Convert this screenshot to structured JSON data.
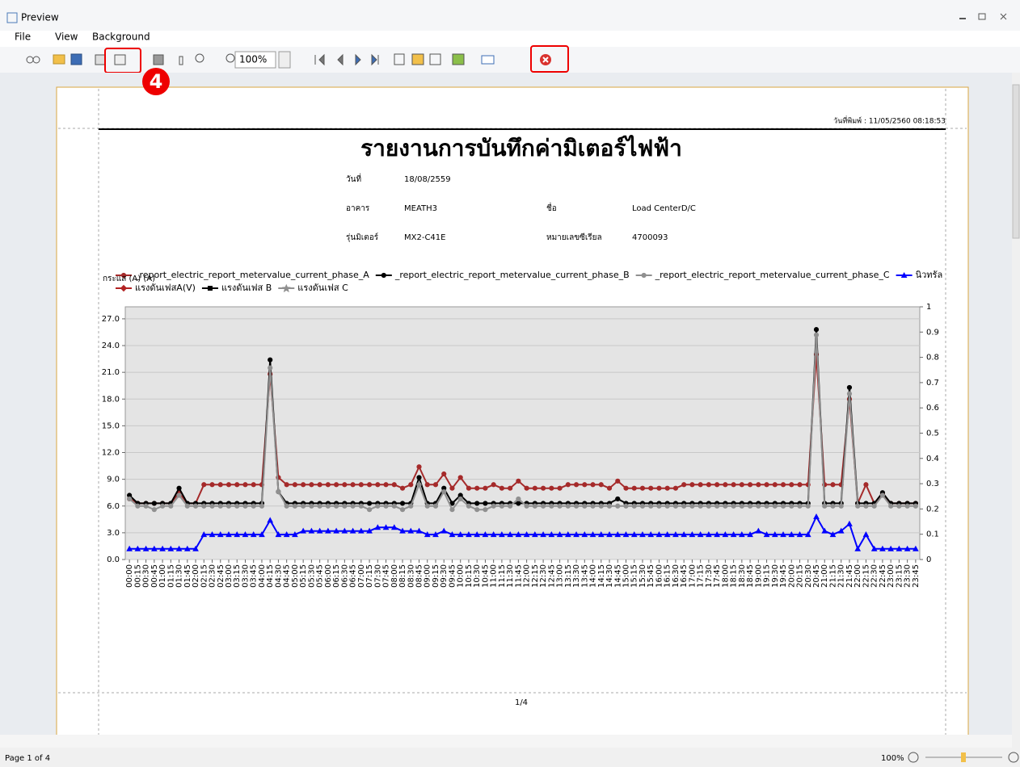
{
  "window": {
    "title": "Preview"
  },
  "menu": [
    "File",
    "View",
    "Background"
  ],
  "toolbar": {
    "zoom": "100%"
  },
  "annotation": {
    "step": "4"
  },
  "page": {
    "print_date": "วันที่พิมพ์ : 11/05/2560 08:18:53",
    "title": "รายงานการบันทึกค่ามิเตอร์ไฟฟ้า",
    "fields": [
      {
        "label": "วันที่",
        "value": "18/08/2559"
      },
      {
        "label": "อาคาร",
        "value": "MEATH3"
      },
      {
        "label": "ชื่อ",
        "value": "Load CenterD/C"
      },
      {
        "label": "รุ่นมิเตอร์",
        "value": "MX2-C41E"
      },
      {
        "label": "หมายเลขซีเรียล",
        "value": "4700093"
      }
    ],
    "page_number": "1/4"
  },
  "chart_data": {
    "type": "line",
    "y_label": "กระแส (A) (A)",
    "categories": [
      "00:00",
      "00:15",
      "00:30",
      "00:45",
      "01:00",
      "01:15",
      "01:30",
      "01:45",
      "02:00",
      "02:15",
      "02:30",
      "02:45",
      "03:00",
      "03:15",
      "03:30",
      "03:45",
      "04:00",
      "04:15",
      "04:30",
      "04:45",
      "05:00",
      "05:15",
      "05:30",
      "05:45",
      "06:00",
      "06:15",
      "06:30",
      "06:45",
      "07:00",
      "07:15",
      "07:30",
      "07:45",
      "08:00",
      "08:15",
      "08:30",
      "08:45",
      "09:00",
      "09:15",
      "09:30",
      "09:45",
      "10:00",
      "10:15",
      "10:30",
      "10:45",
      "11:00",
      "11:15",
      "11:30",
      "11:45",
      "12:00",
      "12:15",
      "12:30",
      "12:45",
      "13:00",
      "13:15",
      "13:30",
      "13:45",
      "14:00",
      "14:15",
      "14:30",
      "14:45",
      "15:00",
      "15:15",
      "15:30",
      "15:45",
      "16:00",
      "16:15",
      "16:30",
      "16:45",
      "17:00",
      "17:15",
      "17:30",
      "17:45",
      "18:00",
      "18:15",
      "18:30",
      "18:45",
      "19:00",
      "19:15",
      "19:30",
      "19:45",
      "20:00",
      "20:15",
      "20:30",
      "20:45",
      "21:00",
      "21:15",
      "21:30",
      "21:45",
      "22:00",
      "22:15",
      "22:30",
      "22:45",
      "23:00",
      "23:15",
      "23:30",
      "23:45"
    ],
    "series": [
      {
        "name": "_report_electric_report_metervalue_current_phase_A",
        "color": "#a52a2a",
        "marker": "circle",
        "values": [
          6.8,
          6.3,
          6.3,
          6.3,
          6.3,
          6.3,
          7.5,
          6.3,
          6.3,
          8.4,
          8.4,
          8.4,
          8.4,
          8.4,
          8.4,
          8.4,
          8.4,
          20.8,
          9.2,
          8.4,
          8.4,
          8.4,
          8.4,
          8.4,
          8.4,
          8.4,
          8.4,
          8.4,
          8.4,
          8.4,
          8.4,
          8.4,
          8.4,
          8.0,
          8.4,
          10.4,
          8.4,
          8.4,
          9.6,
          8.0,
          9.2,
          8.0,
          8.0,
          8.0,
          8.4,
          8.0,
          8.0,
          8.8,
          8.0,
          8.0,
          8.0,
          8.0,
          8.0,
          8.4,
          8.4,
          8.4,
          8.4,
          8.4,
          8.0,
          8.8,
          8.0,
          8.0,
          8.0,
          8.0,
          8.0,
          8.0,
          8.0,
          8.4,
          8.4,
          8.4,
          8.4,
          8.4,
          8.4,
          8.4,
          8.4,
          8.4,
          8.4,
          8.4,
          8.4,
          8.4,
          8.4,
          8.4,
          8.4,
          23.0,
          8.4,
          8.4,
          8.4,
          18.0,
          6.3,
          8.4,
          6.3,
          7.3,
          6.3,
          6.3,
          6.3,
          6.3
        ]
      },
      {
        "name": "_report_electric_report_metervalue_current_phase_B",
        "color": "#000000",
        "marker": "circle",
        "values": [
          7.2,
          6.3,
          6.3,
          6.3,
          6.3,
          6.3,
          8.0,
          6.3,
          6.3,
          6.3,
          6.3,
          6.3,
          6.3,
          6.3,
          6.3,
          6.3,
          6.3,
          22.4,
          7.6,
          6.3,
          6.3,
          6.3,
          6.3,
          6.3,
          6.3,
          6.3,
          6.3,
          6.3,
          6.3,
          6.3,
          6.3,
          6.3,
          6.3,
          6.3,
          6.3,
          9.2,
          6.3,
          6.3,
          8.0,
          6.3,
          7.2,
          6.3,
          6.3,
          6.3,
          6.3,
          6.3,
          6.3,
          6.3,
          6.3,
          6.3,
          6.3,
          6.3,
          6.3,
          6.3,
          6.3,
          6.3,
          6.3,
          6.3,
          6.3,
          6.8,
          6.3,
          6.3,
          6.3,
          6.3,
          6.3,
          6.3,
          6.3,
          6.3,
          6.3,
          6.3,
          6.3,
          6.3,
          6.3,
          6.3,
          6.3,
          6.3,
          6.3,
          6.3,
          6.3,
          6.3,
          6.3,
          6.3,
          6.3,
          25.8,
          6.3,
          6.3,
          6.3,
          19.3,
          6.3,
          6.3,
          6.3,
          7.5,
          6.3,
          6.3,
          6.3,
          6.3
        ]
      },
      {
        "name": "_report_electric_report_metervalue_current_phase_C",
        "color": "#909090",
        "marker": "circle",
        "values": [
          6.8,
          6.0,
          6.0,
          5.6,
          6.0,
          6.0,
          7.2,
          6.0,
          6.0,
          6.0,
          6.0,
          6.0,
          6.0,
          6.0,
          6.0,
          6.0,
          6.0,
          21.5,
          7.6,
          6.0,
          6.0,
          6.0,
          6.0,
          6.0,
          6.0,
          6.0,
          6.0,
          6.0,
          6.0,
          5.6,
          6.0,
          6.0,
          6.0,
          5.6,
          6.0,
          8.4,
          6.0,
          6.0,
          7.6,
          5.6,
          6.8,
          6.0,
          5.6,
          5.6,
          6.0,
          6.0,
          6.0,
          6.8,
          6.0,
          6.0,
          6.0,
          6.0,
          6.0,
          6.0,
          6.0,
          6.0,
          6.0,
          6.0,
          6.0,
          6.0,
          6.0,
          6.0,
          6.0,
          6.0,
          6.0,
          6.0,
          6.0,
          6.0,
          6.0,
          6.0,
          6.0,
          6.0,
          6.0,
          6.0,
          6.0,
          6.0,
          6.0,
          6.0,
          6.0,
          6.0,
          6.0,
          6.0,
          6.0,
          25.2,
          6.0,
          6.0,
          6.0,
          18.6,
          6.0,
          6.0,
          6.0,
          7.2,
          6.0,
          6.0,
          6.0,
          6.0
        ]
      },
      {
        "name": "นิวทรัล",
        "color": "#0000ff",
        "marker": "triangle",
        "values": [
          1.2,
          1.2,
          1.2,
          1.2,
          1.2,
          1.2,
          1.2,
          1.2,
          1.2,
          2.8,
          2.8,
          2.8,
          2.8,
          2.8,
          2.8,
          2.8,
          2.8,
          4.4,
          2.8,
          2.8,
          2.8,
          3.2,
          3.2,
          3.2,
          3.2,
          3.2,
          3.2,
          3.2,
          3.2,
          3.2,
          3.6,
          3.6,
          3.6,
          3.2,
          3.2,
          3.2,
          2.8,
          2.8,
          3.2,
          2.8,
          2.8,
          2.8,
          2.8,
          2.8,
          2.8,
          2.8,
          2.8,
          2.8,
          2.8,
          2.8,
          2.8,
          2.8,
          2.8,
          2.8,
          2.8,
          2.8,
          2.8,
          2.8,
          2.8,
          2.8,
          2.8,
          2.8,
          2.8,
          2.8,
          2.8,
          2.8,
          2.8,
          2.8,
          2.8,
          2.8,
          2.8,
          2.8,
          2.8,
          2.8,
          2.8,
          2.8,
          3.2,
          2.8,
          2.8,
          2.8,
          2.8,
          2.8,
          2.8,
          4.8,
          3.2,
          2.8,
          3.2,
          4.0,
          1.2,
          2.8,
          1.2,
          1.2,
          1.2,
          1.2,
          1.2,
          1.2
        ]
      },
      {
        "name": "แรงดันเฟสA(V)",
        "color": "#b22222",
        "marker": "diamond",
        "values": [
          null,
          null,
          null,
          null,
          null,
          null,
          null,
          null,
          null,
          null,
          null,
          null,
          null,
          null,
          null,
          null,
          null,
          null,
          null,
          null,
          null,
          null,
          null,
          null,
          null,
          null,
          null,
          null,
          null,
          null,
          null,
          null,
          null,
          null,
          null,
          null,
          null,
          null,
          null,
          null,
          null,
          null,
          null,
          null,
          null,
          null,
          null,
          null,
          null,
          null,
          null,
          null,
          null,
          null,
          null,
          null,
          null,
          null,
          null,
          null,
          null,
          null,
          null,
          null,
          null,
          null,
          null,
          null,
          null,
          null,
          null,
          null,
          null,
          null,
          null,
          null,
          null,
          null,
          null,
          null,
          null,
          null,
          null,
          null,
          null,
          null,
          null,
          null,
          null,
          null,
          null,
          null,
          null,
          null,
          null,
          null
        ]
      },
      {
        "name": "แรงดันเฟส B",
        "color": "#000000",
        "marker": "square",
        "values": [
          null,
          null,
          null,
          null,
          null,
          null,
          null,
          null,
          null,
          null,
          null,
          null,
          null,
          null,
          null,
          null,
          null,
          null,
          null,
          null,
          null,
          null,
          null,
          null,
          null,
          null,
          null,
          null,
          null,
          null,
          null,
          null,
          null,
          null,
          null,
          null,
          null,
          null,
          null,
          null,
          null,
          null,
          null,
          null,
          null,
          null,
          null,
          null,
          null,
          null,
          null,
          null,
          null,
          null,
          null,
          null,
          null,
          null,
          null,
          null,
          null,
          null,
          null,
          null,
          null,
          null,
          null,
          null,
          null,
          null,
          null,
          null,
          null,
          null,
          null,
          null,
          null,
          null,
          null,
          null,
          null,
          null,
          null,
          null,
          null,
          null,
          null,
          null,
          null,
          null,
          null,
          null,
          null,
          null,
          null,
          null
        ]
      },
      {
        "name": "แรงดันเฟส C",
        "color": "#909090",
        "marker": "star",
        "values": [
          null,
          null,
          null,
          null,
          null,
          null,
          null,
          null,
          null,
          null,
          null,
          null,
          null,
          null,
          null,
          null,
          null,
          null,
          null,
          null,
          null,
          null,
          null,
          null,
          null,
          null,
          null,
          null,
          null,
          null,
          null,
          null,
          null,
          null,
          null,
          null,
          null,
          null,
          null,
          null,
          null,
          null,
          null,
          null,
          null,
          null,
          null,
          null,
          null,
          null,
          null,
          null,
          null,
          null,
          null,
          null,
          null,
          null,
          null,
          null,
          null,
          null,
          null,
          null,
          null,
          null,
          null,
          null,
          null,
          null,
          null,
          null,
          null,
          null,
          null,
          null,
          null,
          null,
          null,
          null,
          null,
          null,
          null,
          null,
          null,
          null,
          null,
          null,
          null,
          null,
          null,
          null,
          null,
          null,
          null,
          null
        ]
      }
    ],
    "ylim": [
      0,
      28.35
    ],
    "yticks": [
      {
        "value": 0,
        "label": "0.0"
      },
      {
        "value": 3,
        "label": "3.0"
      },
      {
        "value": 6,
        "label": "6.0"
      },
      {
        "value": 9,
        "label": "9.0"
      },
      {
        "value": 12,
        "label": "12.0"
      },
      {
        "value": 15,
        "label": "15.0"
      },
      {
        "value": 18,
        "label": "18.0"
      },
      {
        "value": 21,
        "label": "21.0"
      },
      {
        "value": 24,
        "label": "24.0"
      },
      {
        "value": 27,
        "label": "27.0"
      }
    ],
    "y2lim": [
      0,
      1
    ],
    "y2ticks": [
      0,
      0.1,
      0.2,
      0.3,
      0.4,
      0.5,
      0.6,
      0.7,
      0.8,
      0.9,
      1
    ],
    "grid": true
  },
  "status": {
    "page": "Page 1 of 4",
    "zoom": "100%"
  }
}
